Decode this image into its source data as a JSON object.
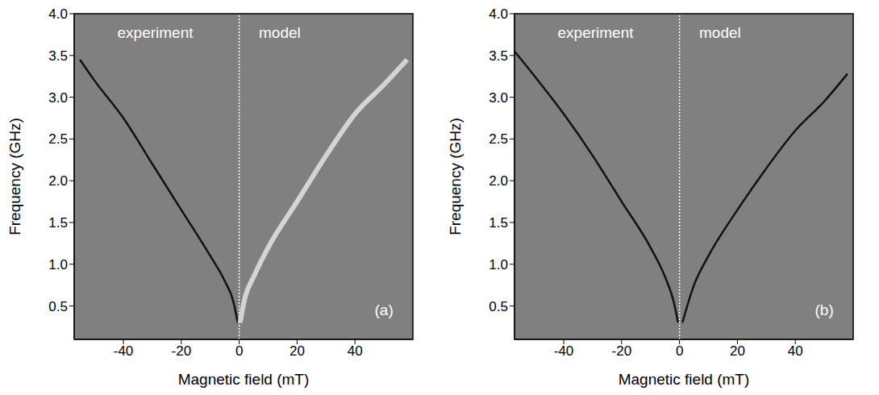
{
  "chart_data": [
    {
      "type": "line",
      "x_label": "Magnetic field (mT)",
      "y_label": "Frequency (GHz)",
      "xlim": [
        -57,
        60
      ],
      "ylim": [
        0.1,
        4.0
      ],
      "xticks": [
        -40,
        -20,
        0,
        20,
        40
      ],
      "yticks": [
        0.5,
        {
          "value": 1,
          "label": "1.0"
        },
        1.5,
        {
          "value": 2,
          "label": "2.0"
        },
        2.5,
        {
          "value": 3,
          "label": "3.0"
        },
        3.5,
        {
          "value": 4,
          "label": "4.0"
        }
      ],
      "grid": false,
      "background": "#808080",
      "divider": 0,
      "annotations": [
        {
          "text": "experiment",
          "x": -29,
          "y": 3.78
        },
        {
          "text": "model",
          "x": 14,
          "y": 3.78
        },
        {
          "text": "(a)",
          "x": 50,
          "y": 0.45
        }
      ],
      "series": [
        {
          "color": "#111111",
          "line_style": "solid",
          "x": [
            -55,
            -50,
            -40,
            -30,
            -20,
            -10,
            -5,
            -2,
            -0.5
          ],
          "values": [
            3.45,
            3.2,
            2.75,
            2.2,
            1.65,
            1.1,
            0.8,
            0.55,
            0.3
          ]
        },
        {
          "color": "#d4d4d4",
          "line_style": "solid",
          "x": [
            0.3,
            2,
            5,
            10,
            20,
            30,
            40,
            50,
            58
          ],
          "values": [
            0.3,
            0.6,
            0.85,
            1.2,
            1.75,
            2.3,
            2.8,
            3.15,
            3.45
          ]
        }
      ]
    },
    {
      "type": "line",
      "x_label": "Magnetic field (mT)",
      "y_label": "Frequency (GHz)",
      "xlim": [
        -57,
        60
      ],
      "ylim": [
        0.1,
        4.0
      ],
      "xticks": [
        -40,
        -20,
        0,
        20,
        40
      ],
      "yticks": [
        0.5,
        {
          "value": 1,
          "label": "1.0"
        },
        1.5,
        {
          "value": 2,
          "label": "2.0"
        },
        2.5,
        {
          "value": 3,
          "label": "3.0"
        },
        3.5,
        {
          "value": 4,
          "label": "4.0"
        }
      ],
      "grid": false,
      "background": "#808080",
      "divider": 0,
      "annotations": [
        {
          "text": "experiment",
          "x": -29,
          "y": 3.78
        },
        {
          "text": "model",
          "x": 14,
          "y": 3.78
        },
        {
          "text": "(b)",
          "x": 50,
          "y": 0.45
        }
      ],
      "series": [
        {
          "color": "#111111",
          "line_style": "solid",
          "x": [
            -57,
            -50,
            -40,
            -30,
            -20,
            -10,
            -5,
            -2,
            -0.5
          ],
          "values": [
            3.55,
            3.25,
            2.8,
            2.3,
            1.75,
            1.2,
            0.85,
            0.55,
            0.3
          ]
        },
        {
          "color": "#111111",
          "line_style": "solid",
          "x": [
            1,
            5,
            10,
            20,
            30,
            40,
            50,
            58
          ],
          "values": [
            0.3,
            0.75,
            1.1,
            1.65,
            2.15,
            2.6,
            2.95,
            3.28
          ]
        }
      ]
    }
  ]
}
